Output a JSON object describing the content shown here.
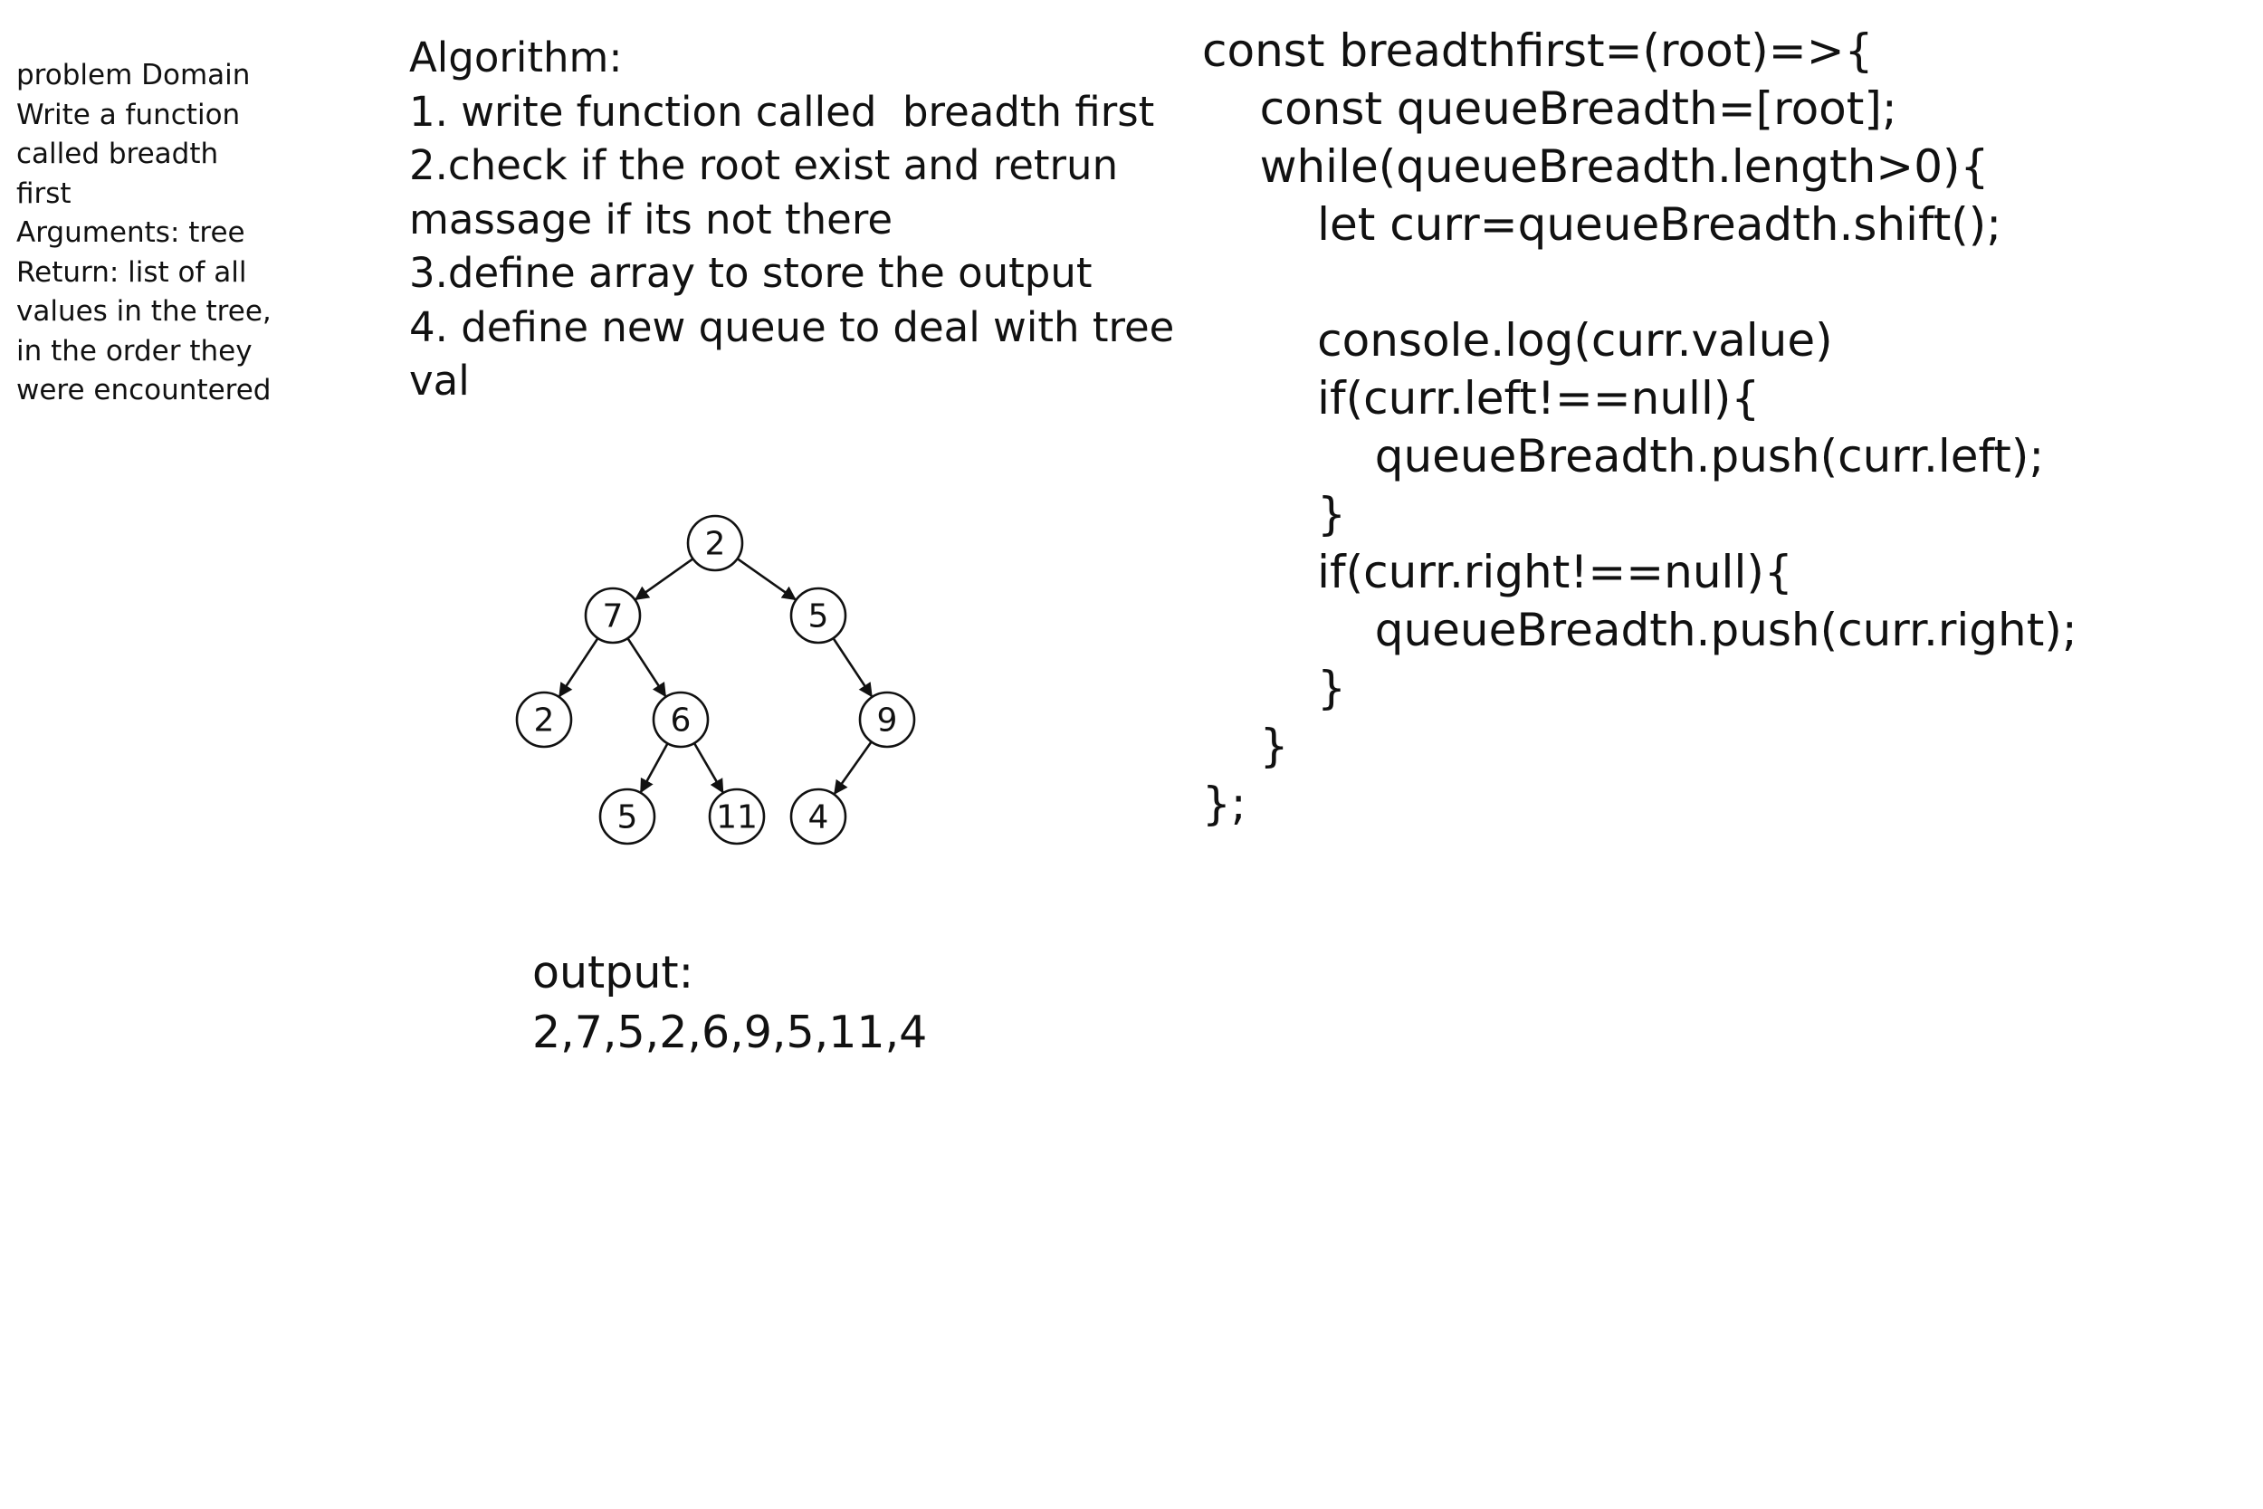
{
  "problem_domain": {
    "lines": [
      "problem Domain",
      "Write a function",
      "called breadth",
      "first",
      "Arguments: tree",
      "Return: list of all",
      "values in the tree,",
      "in the order they",
      "were encountered"
    ]
  },
  "algorithm": {
    "lines": [
      "Algorithm:",
      "1. write function called  breadth first",
      "2.check if the root exist and retrun",
      "massage if its not there",
      "3.define array to store the output",
      "4. define new queue to deal with tree",
      "val"
    ]
  },
  "code": {
    "lines": [
      "const breadthfirst=(root)=>{",
      "    const queueBreadth=[root];",
      "    while(queueBreadth.length>0){",
      "        let curr=queueBreadth.shift();",
      "",
      "        console.log(curr.value)",
      "        if(curr.left!==null){",
      "            queueBreadth.push(curr.left);",
      "        }",
      "        if(curr.right!==null){",
      "            queueBreadth.push(curr.right);",
      "        }",
      "    }",
      "};"
    ]
  },
  "tree": {
    "nodes": [
      {
        "id": "n1",
        "label": "2"
      },
      {
        "id": "n2",
        "label": "7"
      },
      {
        "id": "n3",
        "label": "5"
      },
      {
        "id": "n4",
        "label": "2"
      },
      {
        "id": "n5",
        "label": "6"
      },
      {
        "id": "n6",
        "label": "9"
      },
      {
        "id": "n7",
        "label": "5"
      },
      {
        "id": "n8",
        "label": "11"
      },
      {
        "id": "n9",
        "label": "4"
      }
    ],
    "edges": [
      {
        "from": "n1",
        "to": "n2"
      },
      {
        "from": "n1",
        "to": "n3"
      },
      {
        "from": "n2",
        "to": "n4"
      },
      {
        "from": "n2",
        "to": "n5"
      },
      {
        "from": "n3",
        "to": "n6"
      },
      {
        "from": "n5",
        "to": "n7"
      },
      {
        "from": "n5",
        "to": "n8"
      },
      {
        "from": "n6",
        "to": "n9"
      }
    ]
  },
  "output": {
    "label": "output:",
    "value": "2,7,5,2,6,9,5,11,4"
  }
}
